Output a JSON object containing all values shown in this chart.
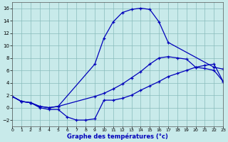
{
  "title": "Graphe des températures (°c)",
  "bg_color": "#c8eaea",
  "line_color": "#0000bb",
  "xlim": [
    0,
    23
  ],
  "ylim": [
    -3,
    17
  ],
  "xticks": [
    0,
    1,
    2,
    3,
    4,
    5,
    6,
    7,
    8,
    9,
    10,
    11,
    12,
    13,
    14,
    15,
    16,
    17,
    18,
    19,
    20,
    21,
    22,
    23
  ],
  "yticks": [
    -2,
    0,
    2,
    4,
    6,
    8,
    10,
    12,
    14,
    16
  ],
  "line1_x": [
    0,
    1,
    2,
    3,
    4,
    5,
    9,
    10,
    11,
    12,
    13,
    14,
    15,
    16,
    17,
    22,
    23
  ],
  "line1_y": [
    1.8,
    1.0,
    0.8,
    0.2,
    0.0,
    0.2,
    7.0,
    11.2,
    13.8,
    15.3,
    15.8,
    16.0,
    15.8,
    13.8,
    10.5,
    6.5,
    6.2
  ],
  "line2_x": [
    0,
    1,
    2,
    3,
    4,
    5,
    9,
    10,
    11,
    12,
    13,
    14,
    15,
    16,
    17,
    18,
    19,
    20,
    21,
    22,
    23
  ],
  "line2_y": [
    1.8,
    1.0,
    0.8,
    0.2,
    0.0,
    0.2,
    1.8,
    2.3,
    3.0,
    3.8,
    4.8,
    5.8,
    7.0,
    8.0,
    8.2,
    8.0,
    7.8,
    6.5,
    6.3,
    6.0,
    4.2
  ],
  "line3_x": [
    0,
    1,
    2,
    3,
    4,
    5,
    6,
    7,
    8,
    9,
    10,
    11,
    12,
    13,
    14,
    15,
    16,
    17,
    18,
    19,
    20,
    21,
    22,
    23
  ],
  "line3_y": [
    1.8,
    1.0,
    0.8,
    0.0,
    -0.3,
    -0.3,
    -1.5,
    -2.0,
    -2.0,
    -1.8,
    1.2,
    1.2,
    1.5,
    2.0,
    2.8,
    3.5,
    4.2,
    5.0,
    5.5,
    6.0,
    6.5,
    6.8,
    7.0,
    4.2
  ]
}
